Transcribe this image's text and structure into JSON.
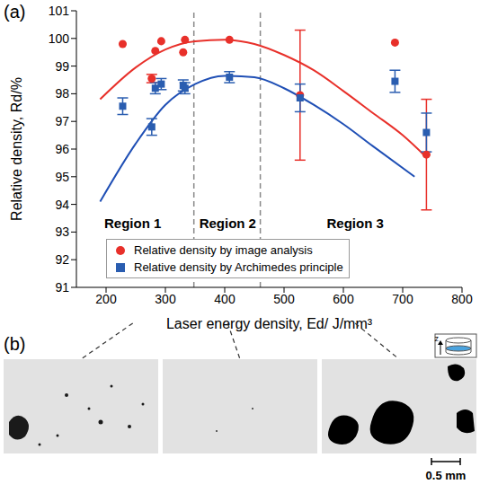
{
  "chart_data": {
    "type": "scatter",
    "panel_label": "(a)",
    "x_label": "Laser energy density, Ed/ J/mm³",
    "y_label": "Relative density, Rd/%",
    "xlim": [
      150,
      800
    ],
    "xticks": [
      200,
      300,
      400,
      500,
      600,
      700,
      800
    ],
    "ylim": [
      91,
      101
    ],
    "yticks": [
      91,
      92,
      93,
      94,
      95,
      96,
      97,
      98,
      99,
      100,
      101
    ],
    "grid": false,
    "legend": "lower left",
    "series": [
      {
        "name": "Relative density by image analysis",
        "color": "#e8302a",
        "marker": "circle",
        "x": [
          228,
          277,
          283,
          293,
          330,
          333,
          408,
          527,
          687,
          740
        ],
        "values": [
          99.8,
          98.55,
          99.55,
          99.9,
          99.5,
          99.95,
          99.95,
          97.95,
          99.85,
          95.8
        ],
        "errors": [
          0,
          0.15,
          0,
          0,
          0,
          0,
          0,
          2.35,
          0,
          2.0
        ]
      },
      {
        "name": "Relative density by Archimedes principle",
        "color": "#2a5db0",
        "marker": "square",
        "x": [
          228,
          277,
          283,
          293,
          330,
          333,
          408,
          527,
          687,
          740
        ],
        "values": [
          97.55,
          96.8,
          98.2,
          98.35,
          98.3,
          98.2,
          98.6,
          97.85,
          98.45,
          96.6
        ],
        "errors": [
          0.3,
          0.3,
          0.2,
          0.2,
          0.2,
          0.2,
          0.2,
          0.5,
          0.4,
          0.7
        ]
      }
    ],
    "fit_curves": [
      {
        "color": "#e8302a",
        "line_style": "solid",
        "x": [
          190,
          250,
          300,
          350,
          400,
          450,
          500,
          550,
          600,
          650,
          700,
          740
        ],
        "values": [
          97.8,
          98.95,
          99.6,
          99.9,
          99.95,
          99.8,
          99.4,
          98.85,
          98.1,
          97.3,
          96.5,
          95.7
        ]
      },
      {
        "color": "#1f4fb5",
        "line_style": "solid",
        "x": [
          190,
          250,
          300,
          350,
          400,
          450,
          500,
          550,
          600,
          650,
          720
        ],
        "values": [
          94.1,
          96.2,
          97.6,
          98.35,
          98.65,
          98.6,
          98.2,
          97.6,
          96.9,
          96.1,
          95.0
        ]
      }
    ],
    "region_boundaries": [
      348,
      460
    ],
    "annotations": [
      {
        "text": "Region 1",
        "x": 245,
        "y": 93.3
      },
      {
        "text": "Region 2",
        "x": 405,
        "y": 93.3
      },
      {
        "text": "Region 3",
        "x": 620,
        "y": 93.3
      }
    ]
  },
  "panel_b": {
    "panel_label": "(b)",
    "inset_axis": "z",
    "scale_bar": "0.5 mm"
  }
}
